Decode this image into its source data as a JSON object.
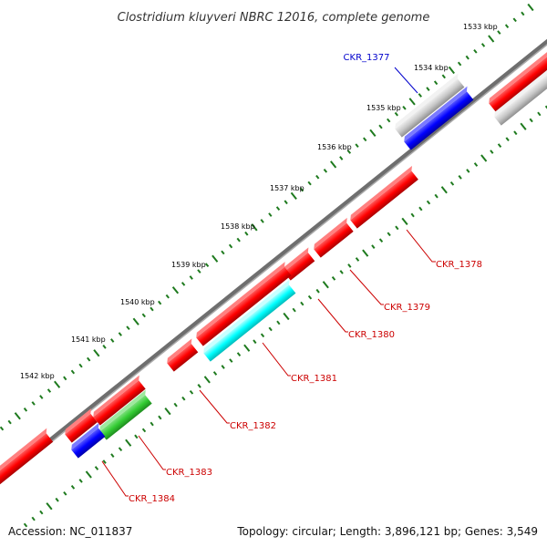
{
  "title": "Clostridium kluyveri NBRC 12016, complete genome",
  "footer": {
    "accession": "Accession: NC_011837",
    "summary": "Topology: circular; Length: 3,896,121 bp; Genes: 3,549"
  },
  "colors": {
    "backbone": "#808080",
    "tick": "#1e7a1e",
    "label_red": "#cc0000",
    "label_blue": "#0000cc"
  },
  "ticks": [
    {
      "label": "1533 kbp"
    },
    {
      "label": "1534 kbp"
    },
    {
      "label": "1535 kbp"
    },
    {
      "label": "1536 kbp"
    },
    {
      "label": "1537 kbp"
    },
    {
      "label": "1538 kbp"
    },
    {
      "label": "1539 kbp"
    },
    {
      "label": "1540 kbp"
    },
    {
      "label": "1541 kbp"
    },
    {
      "label": "1542 kbp"
    }
  ],
  "genes": [
    {
      "label": "CKR_1377",
      "color": "#0000ff",
      "strand": "forward"
    },
    {
      "label": "CKR_1378",
      "color": "#ff0000",
      "strand": "forward"
    },
    {
      "label": "CKR_1379",
      "color": "#ff0000",
      "strand": "forward"
    },
    {
      "label": "CKR_1380",
      "color": "#ff0000",
      "strand": "forward"
    },
    {
      "label": "CKR_1381",
      "color": "#00ffff",
      "strand": "reverse"
    },
    {
      "label": "CKR_1382",
      "color": "#ff0000",
      "strand": "forward"
    },
    {
      "label": "CKR_1383",
      "color": "#33cc33",
      "strand": "reverse"
    },
    {
      "label": "CKR_1384",
      "color": "#0000ff",
      "strand": "reverse"
    }
  ]
}
